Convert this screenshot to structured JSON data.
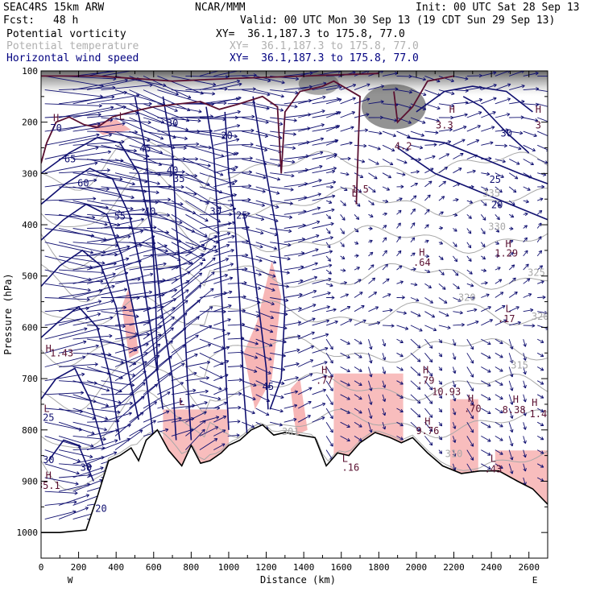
{
  "header": {
    "model": "SEAC4RS 15km ARW",
    "center": "NCAR/MMM",
    "init": "Init: 00 UTC Sat 28 Sep 13",
    "fcst_label": "Fcst:",
    "fcst_value": "48 h",
    "valid": "Valid: 00 UTC Mon 30 Sep 13 (19 CDT Sun 29 Sep 13)",
    "fields": [
      {
        "name": "Potential vorticity",
        "xy": "XY=  36.1,187.3 to 175.8, 77.0",
        "color": "#000000"
      },
      {
        "name": "Potential temperature",
        "xy": "XY=  36.1,187.3 to 175.8, 77.0",
        "color": "#b0b0b0"
      },
      {
        "name": "Horizontal wind speed",
        "xy": "XY=  36.1,187.3 to 175.8, 77.0",
        "color": "#000080"
      }
    ]
  },
  "colors": {
    "wind_speed": "#101070",
    "theta": "#a8a8a8",
    "pv_contour": "#5a1030",
    "pv_fill": "#f7b6b6",
    "terrain": "#000000"
  },
  "chart_data": {
    "type": "cross-section",
    "xlabel": "Distance (km)",
    "ylabel": "Pressure (hPa)",
    "xlim": [
      0,
      2700
    ],
    "ylim": [
      1050,
      100
    ],
    "xticks": [
      "0",
      "200",
      "400",
      "600",
      "800",
      "1000",
      "1200",
      "1400",
      "1600",
      "1800",
      "2000",
      "2200",
      "2400",
      "2600"
    ],
    "yticks": [
      "100",
      "200",
      "300",
      "400",
      "500",
      "600",
      "700",
      "800",
      "900",
      "1000"
    ],
    "x_ends": {
      "left": "W",
      "right": "E"
    },
    "terrain_surface": [
      {
        "x": 0,
        "p": 1000
      },
      {
        "x": 100,
        "p": 1000
      },
      {
        "x": 240,
        "p": 995
      },
      {
        "x": 300,
        "p": 930
      },
      {
        "x": 360,
        "p": 860
      },
      {
        "x": 420,
        "p": 850
      },
      {
        "x": 480,
        "p": 835
      },
      {
        "x": 520,
        "p": 860
      },
      {
        "x": 560,
        "p": 820
      },
      {
        "x": 620,
        "p": 800
      },
      {
        "x": 680,
        "p": 840
      },
      {
        "x": 750,
        "p": 870
      },
      {
        "x": 800,
        "p": 830
      },
      {
        "x": 850,
        "p": 865
      },
      {
        "x": 900,
        "p": 860
      },
      {
        "x": 960,
        "p": 845
      },
      {
        "x": 1000,
        "p": 830
      },
      {
        "x": 1060,
        "p": 820
      },
      {
        "x": 1120,
        "p": 800
      },
      {
        "x": 1180,
        "p": 790
      },
      {
        "x": 1240,
        "p": 810
      },
      {
        "x": 1300,
        "p": 805
      },
      {
        "x": 1380,
        "p": 810
      },
      {
        "x": 1460,
        "p": 815
      },
      {
        "x": 1520,
        "p": 870
      },
      {
        "x": 1580,
        "p": 845
      },
      {
        "x": 1640,
        "p": 850
      },
      {
        "x": 1700,
        "p": 825
      },
      {
        "x": 1780,
        "p": 805
      },
      {
        "x": 1860,
        "p": 815
      },
      {
        "x": 1920,
        "p": 825
      },
      {
        "x": 1980,
        "p": 815
      },
      {
        "x": 2060,
        "p": 845
      },
      {
        "x": 2140,
        "p": 870
      },
      {
        "x": 2240,
        "p": 885
      },
      {
        "x": 2340,
        "p": 880
      },
      {
        "x": 2440,
        "p": 880
      },
      {
        "x": 2540,
        "p": 900
      },
      {
        "x": 2620,
        "p": 915
      },
      {
        "x": 2700,
        "p": 945
      }
    ],
    "contour_labels": [
      {
        "text": "70",
        "x": 80,
        "p": 218,
        "field": "wind"
      },
      {
        "text": "65",
        "x": 155,
        "p": 278,
        "field": "wind"
      },
      {
        "text": "60",
        "x": 225,
        "p": 325,
        "field": "wind"
      },
      {
        "text": "55",
        "x": 420,
        "p": 390,
        "field": "wind"
      },
      {
        "text": "45",
        "x": 555,
        "p": 258,
        "field": "wind"
      },
      {
        "text": "40",
        "x": 700,
        "p": 300,
        "field": "wind"
      },
      {
        "text": "35",
        "x": 735,
        "p": 317,
        "field": "wind"
      },
      {
        "text": "40",
        "x": 580,
        "p": 380,
        "field": "wind"
      },
      {
        "text": "30",
        "x": 930,
        "p": 380,
        "field": "wind"
      },
      {
        "text": "25",
        "x": 1070,
        "p": 388,
        "field": "wind"
      },
      {
        "text": "20",
        "x": 990,
        "p": 233,
        "field": "wind"
      },
      {
        "text": "30",
        "x": 700,
        "p": 208,
        "field": "wind"
      },
      {
        "text": "45",
        "x": 1210,
        "p": 722,
        "field": "wind"
      },
      {
        "text": "30",
        "x": 240,
        "p": 880,
        "field": "wind"
      },
      {
        "text": "30",
        "x": 40,
        "p": 865,
        "field": "wind"
      },
      {
        "text": "20",
        "x": 320,
        "p": 960,
        "field": "wind"
      },
      {
        "text": "25",
        "x": 40,
        "p": 782,
        "field": "wind"
      },
      {
        "text": "30",
        "x": 2480,
        "p": 228,
        "field": "wind"
      },
      {
        "text": "25",
        "x": 2420,
        "p": 318,
        "field": "wind"
      },
      {
        "text": "20",
        "x": 2430,
        "p": 368,
        "field": "wind"
      },
      {
        "text": "1.5",
        "x": 1700,
        "p": 337,
        "field": "pv"
      },
      {
        "text": "1.29",
        "x": 2480,
        "p": 462,
        "field": "pv"
      },
      {
        "text": ".64",
        "x": 2030,
        "p": 480,
        "field": "pv"
      },
      {
        "text": ".17",
        "x": 2480,
        "p": 590,
        "field": "pv"
      },
      {
        "text": "3.3",
        "x": 2150,
        "p": 212,
        "field": "pv"
      },
      {
        "text": "4.2",
        "x": 1930,
        "p": 253,
        "field": "pv"
      },
      {
        "text": "3",
        "x": 2650,
        "p": 212,
        "field": "pv"
      },
      {
        "text": "1.43",
        "x": 110,
        "p": 657,
        "field": "pv"
      },
      {
        "text": "35.1",
        "x": 40,
        "p": 915,
        "field": "pv"
      },
      {
        "text": ".77",
        "x": 1510,
        "p": 710,
        "field": "pv"
      },
      {
        "text": ".79",
        "x": 2050,
        "p": 710,
        "field": "pv"
      },
      {
        "text": "10.93",
        "x": 2160,
        "p": 732,
        "field": "pv"
      },
      {
        "text": ".70",
        "x": 2300,
        "p": 765,
        "field": "pv"
      },
      {
        "text": "8.38",
        "x": 2520,
        "p": 767,
        "field": "pv"
      },
      {
        "text": "1.4",
        "x": 2650,
        "p": 775,
        "field": "pv"
      },
      {
        "text": "9.76",
        "x": 2060,
        "p": 808,
        "field": "pv"
      },
      {
        "text": ".43",
        "x": 2410,
        "p": 883,
        "field": "pv"
      },
      {
        "text": ".16",
        "x": 1650,
        "p": 880,
        "field": "pv"
      },
      {
        "text": "335",
        "x": 2400,
        "p": 345,
        "field": "theta"
      },
      {
        "text": "330",
        "x": 2430,
        "p": 410,
        "field": "theta"
      },
      {
        "text": "325",
        "x": 2640,
        "p": 500,
        "field": "theta"
      },
      {
        "text": "320",
        "x": 2270,
        "p": 548,
        "field": "theta"
      },
      {
        "text": "320",
        "x": 2660,
        "p": 585,
        "field": "theta"
      },
      {
        "text": "315",
        "x": 2550,
        "p": 680,
        "field": "theta"
      },
      {
        "text": "301",
        "x": 1330,
        "p": 810,
        "field": "theta"
      },
      {
        "text": "310",
        "x": 2200,
        "p": 853,
        "field": "theta"
      }
    ],
    "extrema": [
      {
        "text": "H",
        "x": 2190,
        "p": 182
      },
      {
        "text": "H",
        "x": 2650,
        "p": 182
      },
      {
        "text": "H",
        "x": 40,
        "p": 648
      },
      {
        "text": "H",
        "x": 2030,
        "p": 460
      },
      {
        "text": "H",
        "x": 2490,
        "p": 444
      },
      {
        "text": "L",
        "x": 2490,
        "p": 570
      },
      {
        "text": "H",
        "x": 1510,
        "p": 690
      },
      {
        "text": "H",
        "x": 2050,
        "p": 690
      },
      {
        "text": "H",
        "x": 2290,
        "p": 745
      },
      {
        "text": "H",
        "x": 2530,
        "p": 747
      },
      {
        "text": "H",
        "x": 2630,
        "p": 753
      },
      {
        "text": "H",
        "x": 2060,
        "p": 790
      },
      {
        "text": "L",
        "x": 2410,
        "p": 862
      },
      {
        "text": "L",
        "x": 1620,
        "p": 862
      },
      {
        "text": "L",
        "x": 30,
        "p": 765
      },
      {
        "text": "H",
        "x": 40,
        "p": 895
      },
      {
        "text": "L",
        "x": 750,
        "p": 752
      },
      {
        "text": "L",
        "x": 430,
        "p": 195
      },
      {
        "text": "H",
        "x": 80,
        "p": 198
      },
      {
        "text": "L",
        "x": 1670,
        "p": 345
      }
    ]
  }
}
